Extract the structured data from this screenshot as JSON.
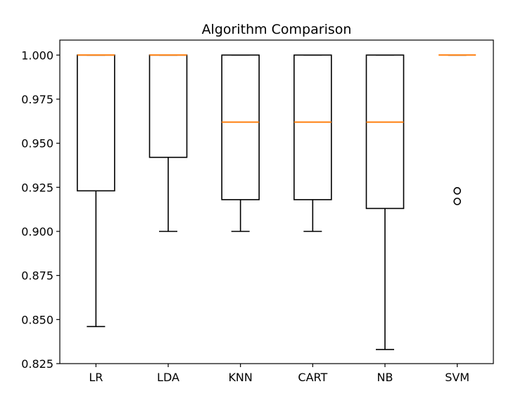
{
  "chart_data": {
    "type": "box",
    "title": "Algorithm Comparison",
    "xlabel": "",
    "ylabel": "",
    "ylim": [
      0.825,
      1.0085
    ],
    "yticks": [
      0.825,
      0.85,
      0.875,
      0.9,
      0.925,
      0.95,
      0.975,
      1.0
    ],
    "ytick_labels": [
      "0.825",
      "0.850",
      "0.875",
      "0.900",
      "0.925",
      "0.950",
      "0.975",
      "1.000"
    ],
    "grid": false,
    "median_color": "#ff7f0e",
    "box_color": "#000000",
    "categories": [
      "LR",
      "LDA",
      "KNN",
      "CART",
      "NB",
      "SVM"
    ],
    "boxes": [
      {
        "label": "LR",
        "whisker_low": 0.846,
        "q1": 0.923,
        "median": 1.0,
        "q3": 1.0,
        "whisker_high": 1.0,
        "fliers": []
      },
      {
        "label": "LDA",
        "whisker_low": 0.9,
        "q1": 0.942,
        "median": 1.0,
        "q3": 1.0,
        "whisker_high": 1.0,
        "fliers": []
      },
      {
        "label": "KNN",
        "whisker_low": 0.9,
        "q1": 0.918,
        "median": 0.962,
        "q3": 1.0,
        "whisker_high": 1.0,
        "fliers": []
      },
      {
        "label": "CART",
        "whisker_low": 0.9,
        "q1": 0.918,
        "median": 0.962,
        "q3": 1.0,
        "whisker_high": 1.0,
        "fliers": []
      },
      {
        "label": "NB",
        "whisker_low": 0.833,
        "q1": 0.913,
        "median": 0.962,
        "q3": 1.0,
        "whisker_high": 1.0,
        "fliers": []
      },
      {
        "label": "SVM",
        "whisker_low": 1.0,
        "q1": 1.0,
        "median": 1.0,
        "q3": 1.0,
        "whisker_high": 1.0,
        "fliers": [
          0.923,
          0.917
        ]
      }
    ]
  }
}
